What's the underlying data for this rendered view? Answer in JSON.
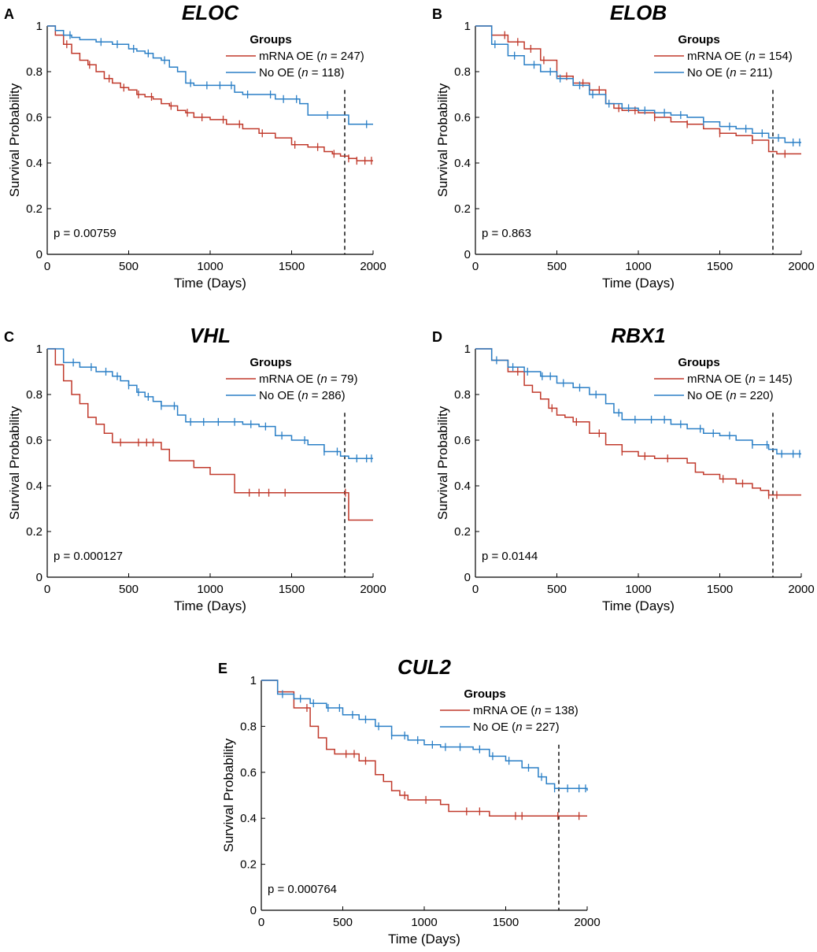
{
  "colors": {
    "mrna_oe": "#c0392b",
    "no_oe": "#2a7fc6",
    "axis": "#000000"
  },
  "chart_data": [
    {
      "type": "line",
      "panel": "A",
      "title": "ELOC",
      "xlabel": "Time (Days)",
      "ylabel": "Survival Probability",
      "xlim": [
        0,
        2000
      ],
      "ylim": [
        0,
        1
      ],
      "xticks": [
        0,
        500,
        1000,
        1500,
        2000
      ],
      "yticks": [
        0,
        0.2,
        0.4,
        0.6,
        0.8,
        1
      ],
      "ytick_labels": [
        "0",
        "0.2",
        "0.4",
        "0.6",
        "0.8",
        "1"
      ],
      "cutoff_day": 1826,
      "legend_title": "Groups",
      "p_value": "p = 0.00759",
      "series": [
        {
          "name": "mRNA OE",
          "n": "247",
          "color": "#c0392b",
          "x": [
            0,
            50,
            100,
            150,
            200,
            250,
            300,
            350,
            400,
            450,
            500,
            550,
            600,
            650,
            700,
            750,
            800,
            850,
            900,
            1000,
            1100,
            1200,
            1300,
            1400,
            1500,
            1600,
            1700,
            1750,
            1800,
            1850,
            1900,
            1950,
            2000
          ],
          "y": [
            1,
            0.96,
            0.92,
            0.88,
            0.85,
            0.83,
            0.8,
            0.77,
            0.75,
            0.73,
            0.72,
            0.7,
            0.69,
            0.68,
            0.66,
            0.65,
            0.63,
            0.62,
            0.6,
            0.59,
            0.57,
            0.55,
            0.53,
            0.51,
            0.48,
            0.47,
            0.45,
            0.44,
            0.43,
            0.42,
            0.41,
            0.41,
            0.41
          ],
          "censors": [
            120,
            260,
            380,
            470,
            560,
            640,
            760,
            860,
            950,
            1080,
            1180,
            1320,
            1520,
            1660,
            1760,
            1850,
            1900,
            1950,
            1990
          ]
        },
        {
          "name": "No OE",
          "n": "118",
          "color": "#2a7fc6",
          "x": [
            0,
            50,
            100,
            150,
            200,
            300,
            400,
            500,
            550,
            600,
            650,
            700,
            750,
            800,
            850,
            900,
            1000,
            1100,
            1150,
            1200,
            1300,
            1400,
            1500,
            1550,
            1600,
            1650,
            1700,
            1800,
            1850,
            1900,
            2000
          ],
          "y": [
            1,
            0.98,
            0.96,
            0.95,
            0.94,
            0.93,
            0.92,
            0.9,
            0.89,
            0.88,
            0.86,
            0.85,
            0.82,
            0.8,
            0.75,
            0.74,
            0.74,
            0.74,
            0.71,
            0.7,
            0.7,
            0.68,
            0.68,
            0.66,
            0.61,
            0.61,
            0.61,
            0.61,
            0.57,
            0.57,
            0.57
          ],
          "censors": [
            140,
            330,
            430,
            530,
            620,
            720,
            880,
            980,
            1060,
            1130,
            1230,
            1370,
            1450,
            1530,
            1720,
            1960
          ]
        }
      ]
    },
    {
      "type": "line",
      "panel": "B",
      "title": "ELOB",
      "xlabel": "Time (Days)",
      "ylabel": "Survival Probability",
      "xlim": [
        0,
        2000
      ],
      "ylim": [
        0,
        1
      ],
      "xticks": [
        0,
        500,
        1000,
        1500,
        2000
      ],
      "yticks": [
        0,
        0.2,
        0.4,
        0.6,
        0.8,
        1
      ],
      "ytick_labels": [
        "0",
        "0.2",
        "0.4",
        "0.6",
        "0.8",
        "1"
      ],
      "cutoff_day": 1826,
      "legend_title": "Groups",
      "p_value": "p = 0.863",
      "series": [
        {
          "name": "mRNA OE",
          "n": "154",
          "color": "#c0392b",
          "x": [
            0,
            100,
            200,
            300,
            400,
            500,
            600,
            700,
            800,
            850,
            900,
            1000,
            1100,
            1200,
            1300,
            1400,
            1500,
            1600,
            1700,
            1800,
            1850,
            2000
          ],
          "y": [
            1,
            0.96,
            0.93,
            0.9,
            0.85,
            0.78,
            0.75,
            0.72,
            0.66,
            0.64,
            0.63,
            0.62,
            0.6,
            0.58,
            0.57,
            0.55,
            0.53,
            0.52,
            0.5,
            0.45,
            0.44,
            0.44
          ],
          "censors": [
            180,
            260,
            340,
            420,
            560,
            660,
            760,
            880,
            980,
            1100,
            1300,
            1500,
            1700,
            1900
          ]
        },
        {
          "name": "No OE",
          "n": "211",
          "color": "#2a7fc6",
          "x": [
            0,
            100,
            200,
            300,
            400,
            500,
            600,
            700,
            800,
            900,
            1000,
            1100,
            1200,
            1300,
            1400,
            1500,
            1600,
            1700,
            1800,
            1900,
            2000
          ],
          "y": [
            1,
            0.92,
            0.87,
            0.83,
            0.8,
            0.77,
            0.74,
            0.7,
            0.66,
            0.64,
            0.63,
            0.62,
            0.61,
            0.6,
            0.58,
            0.56,
            0.55,
            0.53,
            0.51,
            0.49,
            0.49
          ],
          "censors": [
            120,
            240,
            360,
            460,
            520,
            640,
            720,
            820,
            940,
            1040,
            1160,
            1260,
            1400,
            1560,
            1660,
            1760,
            1860,
            1950,
            1990
          ]
        }
      ]
    },
    {
      "type": "line",
      "panel": "C",
      "title": "VHL",
      "xlabel": "Time (Days)",
      "ylabel": "Survival Probability",
      "xlim": [
        0,
        2000
      ],
      "ylim": [
        0,
        1
      ],
      "xticks": [
        0,
        500,
        1000,
        1500,
        2000
      ],
      "yticks": [
        0,
        0.2,
        0.4,
        0.6,
        0.8,
        1
      ],
      "ytick_labels": [
        "0",
        "0.2",
        "0.4",
        "0.6",
        "0.8",
        "1"
      ],
      "cutoff_day": 1826,
      "legend_title": "Groups",
      "p_value": "p = 0.000127",
      "series": [
        {
          "name": "mRNA OE",
          "n": "79",
          "color": "#c0392b",
          "x": [
            0,
            50,
            100,
            150,
            200,
            250,
            300,
            350,
            400,
            700,
            750,
            900,
            1000,
            1150,
            1800,
            1850,
            2000
          ],
          "y": [
            1,
            0.93,
            0.86,
            0.8,
            0.76,
            0.7,
            0.67,
            0.63,
            0.59,
            0.56,
            0.51,
            0.48,
            0.45,
            0.37,
            0.37,
            0.25,
            0.25
          ],
          "censors": [
            450,
            560,
            610,
            650,
            1240,
            1300,
            1360,
            1460,
            1830
          ]
        },
        {
          "name": "No OE",
          "n": "286",
          "color": "#2a7fc6",
          "x": [
            0,
            100,
            200,
            300,
            400,
            450,
            500,
            550,
            600,
            650,
            700,
            800,
            850,
            900,
            1000,
            1100,
            1200,
            1300,
            1400,
            1500,
            1600,
            1700,
            1800,
            1850,
            2000
          ],
          "y": [
            1,
            0.94,
            0.92,
            0.9,
            0.88,
            0.86,
            0.84,
            0.81,
            0.79,
            0.77,
            0.75,
            0.71,
            0.68,
            0.68,
            0.68,
            0.68,
            0.67,
            0.66,
            0.62,
            0.6,
            0.58,
            0.55,
            0.53,
            0.52,
            0.52
          ],
          "censors": [
            160,
            270,
            360,
            430,
            500,
            560,
            620,
            700,
            780,
            880,
            960,
            1050,
            1150,
            1250,
            1340,
            1440,
            1580,
            1700,
            1780,
            1900,
            1960,
            1990
          ]
        }
      ]
    },
    {
      "type": "line",
      "panel": "D",
      "title": "RBX1",
      "xlabel": "Time (Days)",
      "ylabel": "Survival Probability",
      "xlim": [
        0,
        2000
      ],
      "ylim": [
        0,
        1
      ],
      "xticks": [
        0,
        500,
        1000,
        1500,
        2000
      ],
      "yticks": [
        0,
        0.2,
        0.4,
        0.6,
        0.8,
        1
      ],
      "ytick_labels": [
        "0",
        "0.2",
        "0.4",
        "0.6",
        "0.8",
        "1"
      ],
      "cutoff_day": 1826,
      "legend_title": "Groups",
      "p_value": "p = 0.0144",
      "series": [
        {
          "name": "mRNA OE",
          "n": "145",
          "color": "#c0392b",
          "x": [
            0,
            100,
            200,
            300,
            350,
            400,
            450,
            500,
            550,
            600,
            700,
            800,
            900,
            1000,
            1100,
            1200,
            1300,
            1350,
            1400,
            1500,
            1600,
            1700,
            1750,
            1800,
            2000
          ],
          "y": [
            1,
            0.95,
            0.9,
            0.84,
            0.81,
            0.78,
            0.74,
            0.71,
            0.7,
            0.68,
            0.63,
            0.58,
            0.55,
            0.53,
            0.52,
            0.52,
            0.5,
            0.46,
            0.45,
            0.43,
            0.41,
            0.39,
            0.38,
            0.36,
            0.36
          ],
          "censors": [
            260,
            470,
            620,
            760,
            900,
            1040,
            1180,
            1520,
            1640,
            1800,
            1850
          ]
        },
        {
          "name": "No OE",
          "n": "220",
          "color": "#2a7fc6",
          "x": [
            0,
            100,
            200,
            300,
            400,
            500,
            600,
            700,
            800,
            850,
            900,
            1000,
            1100,
            1200,
            1300,
            1400,
            1500,
            1600,
            1700,
            1800,
            1850,
            2000
          ],
          "y": [
            1,
            0.95,
            0.92,
            0.9,
            0.88,
            0.85,
            0.83,
            0.8,
            0.76,
            0.72,
            0.69,
            0.69,
            0.69,
            0.67,
            0.65,
            0.63,
            0.62,
            0.6,
            0.58,
            0.56,
            0.54,
            0.54
          ],
          "censors": [
            130,
            230,
            320,
            410,
            460,
            540,
            640,
            740,
            880,
            980,
            1080,
            1160,
            1260,
            1380,
            1460,
            1560,
            1700,
            1790,
            1880,
            1950,
            1990
          ]
        }
      ]
    },
    {
      "type": "line",
      "panel": "E",
      "title": "CUL2",
      "xlabel": "Time (Days)",
      "ylabel": "Survival Probability",
      "xlim": [
        0,
        2000
      ],
      "ylim": [
        0,
        1
      ],
      "xticks": [
        0,
        500,
        1000,
        1500,
        2000
      ],
      "yticks": [
        0,
        0.2,
        0.4,
        0.6,
        0.8,
        1
      ],
      "ytick_labels": [
        "0",
        "0.2",
        "0.4",
        "0.6",
        "0.8",
        "1"
      ],
      "cutoff_day": 1826,
      "legend_title": "Groups",
      "p_value": "p = 0.000764",
      "series": [
        {
          "name": "mRNA OE",
          "n": "138",
          "color": "#c0392b",
          "x": [
            0,
            100,
            200,
            300,
            350,
            400,
            450,
            500,
            600,
            700,
            750,
            800,
            850,
            900,
            1000,
            1100,
            1150,
            1200,
            1300,
            1400,
            1800,
            2000
          ],
          "y": [
            1,
            0.95,
            0.88,
            0.8,
            0.75,
            0.7,
            0.68,
            0.68,
            0.65,
            0.59,
            0.56,
            0.52,
            0.5,
            0.48,
            0.48,
            0.46,
            0.43,
            0.43,
            0.43,
            0.41,
            0.41,
            0.41
          ],
          "censors": [
            280,
            520,
            570,
            640,
            880,
            1010,
            1260,
            1340,
            1560,
            1600,
            1820,
            1950
          ]
        },
        {
          "name": "No OE",
          "n": "227",
          "color": "#2a7fc6",
          "x": [
            0,
            100,
            200,
            300,
            400,
            500,
            600,
            700,
            800,
            900,
            1000,
            1100,
            1200,
            1300,
            1400,
            1500,
            1600,
            1700,
            1750,
            1800,
            2000
          ],
          "y": [
            1,
            0.94,
            0.92,
            0.9,
            0.88,
            0.85,
            0.83,
            0.8,
            0.76,
            0.74,
            0.72,
            0.71,
            0.71,
            0.7,
            0.67,
            0.65,
            0.62,
            0.58,
            0.55,
            0.53,
            0.52
          ],
          "censors": [
            130,
            240,
            320,
            410,
            480,
            560,
            640,
            720,
            800,
            880,
            960,
            1050,
            1130,
            1220,
            1340,
            1420,
            1520,
            1640,
            1720,
            1800,
            1880,
            1950,
            1990
          ]
        }
      ]
    }
  ]
}
